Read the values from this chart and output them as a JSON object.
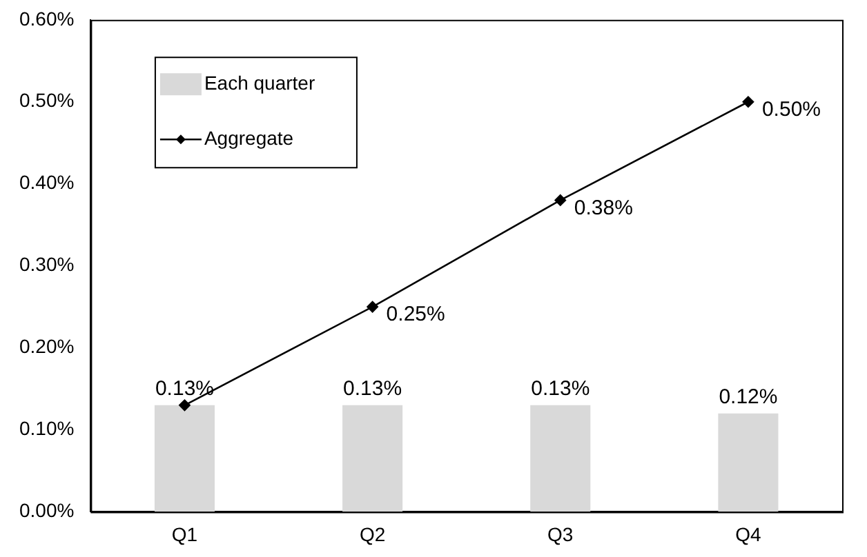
{
  "chart_data": {
    "type": "bar",
    "categories": [
      "Q1",
      "Q2",
      "Q3",
      "Q4"
    ],
    "series": [
      {
        "name": "Each quarter",
        "color": "#d9d9d9",
        "values": [
          0.13,
          0.13,
          0.13,
          0.12
        ],
        "value_labels": [
          "0.13%",
          "0.13%",
          "0.13%",
          "0.12%"
        ]
      },
      {
        "name": "Aggregate",
        "type": "line",
        "color": "#000000",
        "values": [
          0.13,
          0.25,
          0.38,
          0.5
        ],
        "value_labels": [
          null,
          "0.25%",
          "0.38%",
          "0.50%"
        ]
      }
    ],
    "ylim": [
      0,
      0.6
    ],
    "yticks": [
      {
        "value": 0,
        "label": "0.00%"
      },
      {
        "value": 0.1,
        "label": "0.10%"
      },
      {
        "value": 0.2,
        "label": "0.20%"
      },
      {
        "value": 0.3,
        "label": "0.30%"
      },
      {
        "value": 0.4,
        "label": "0.40%"
      },
      {
        "value": 0.5,
        "label": "0.50%"
      },
      {
        "value": 0.6,
        "label": "0.60%"
      }
    ],
    "grid": false,
    "legend": "top left",
    "marker": "diamond",
    "line_style": "solid"
  }
}
